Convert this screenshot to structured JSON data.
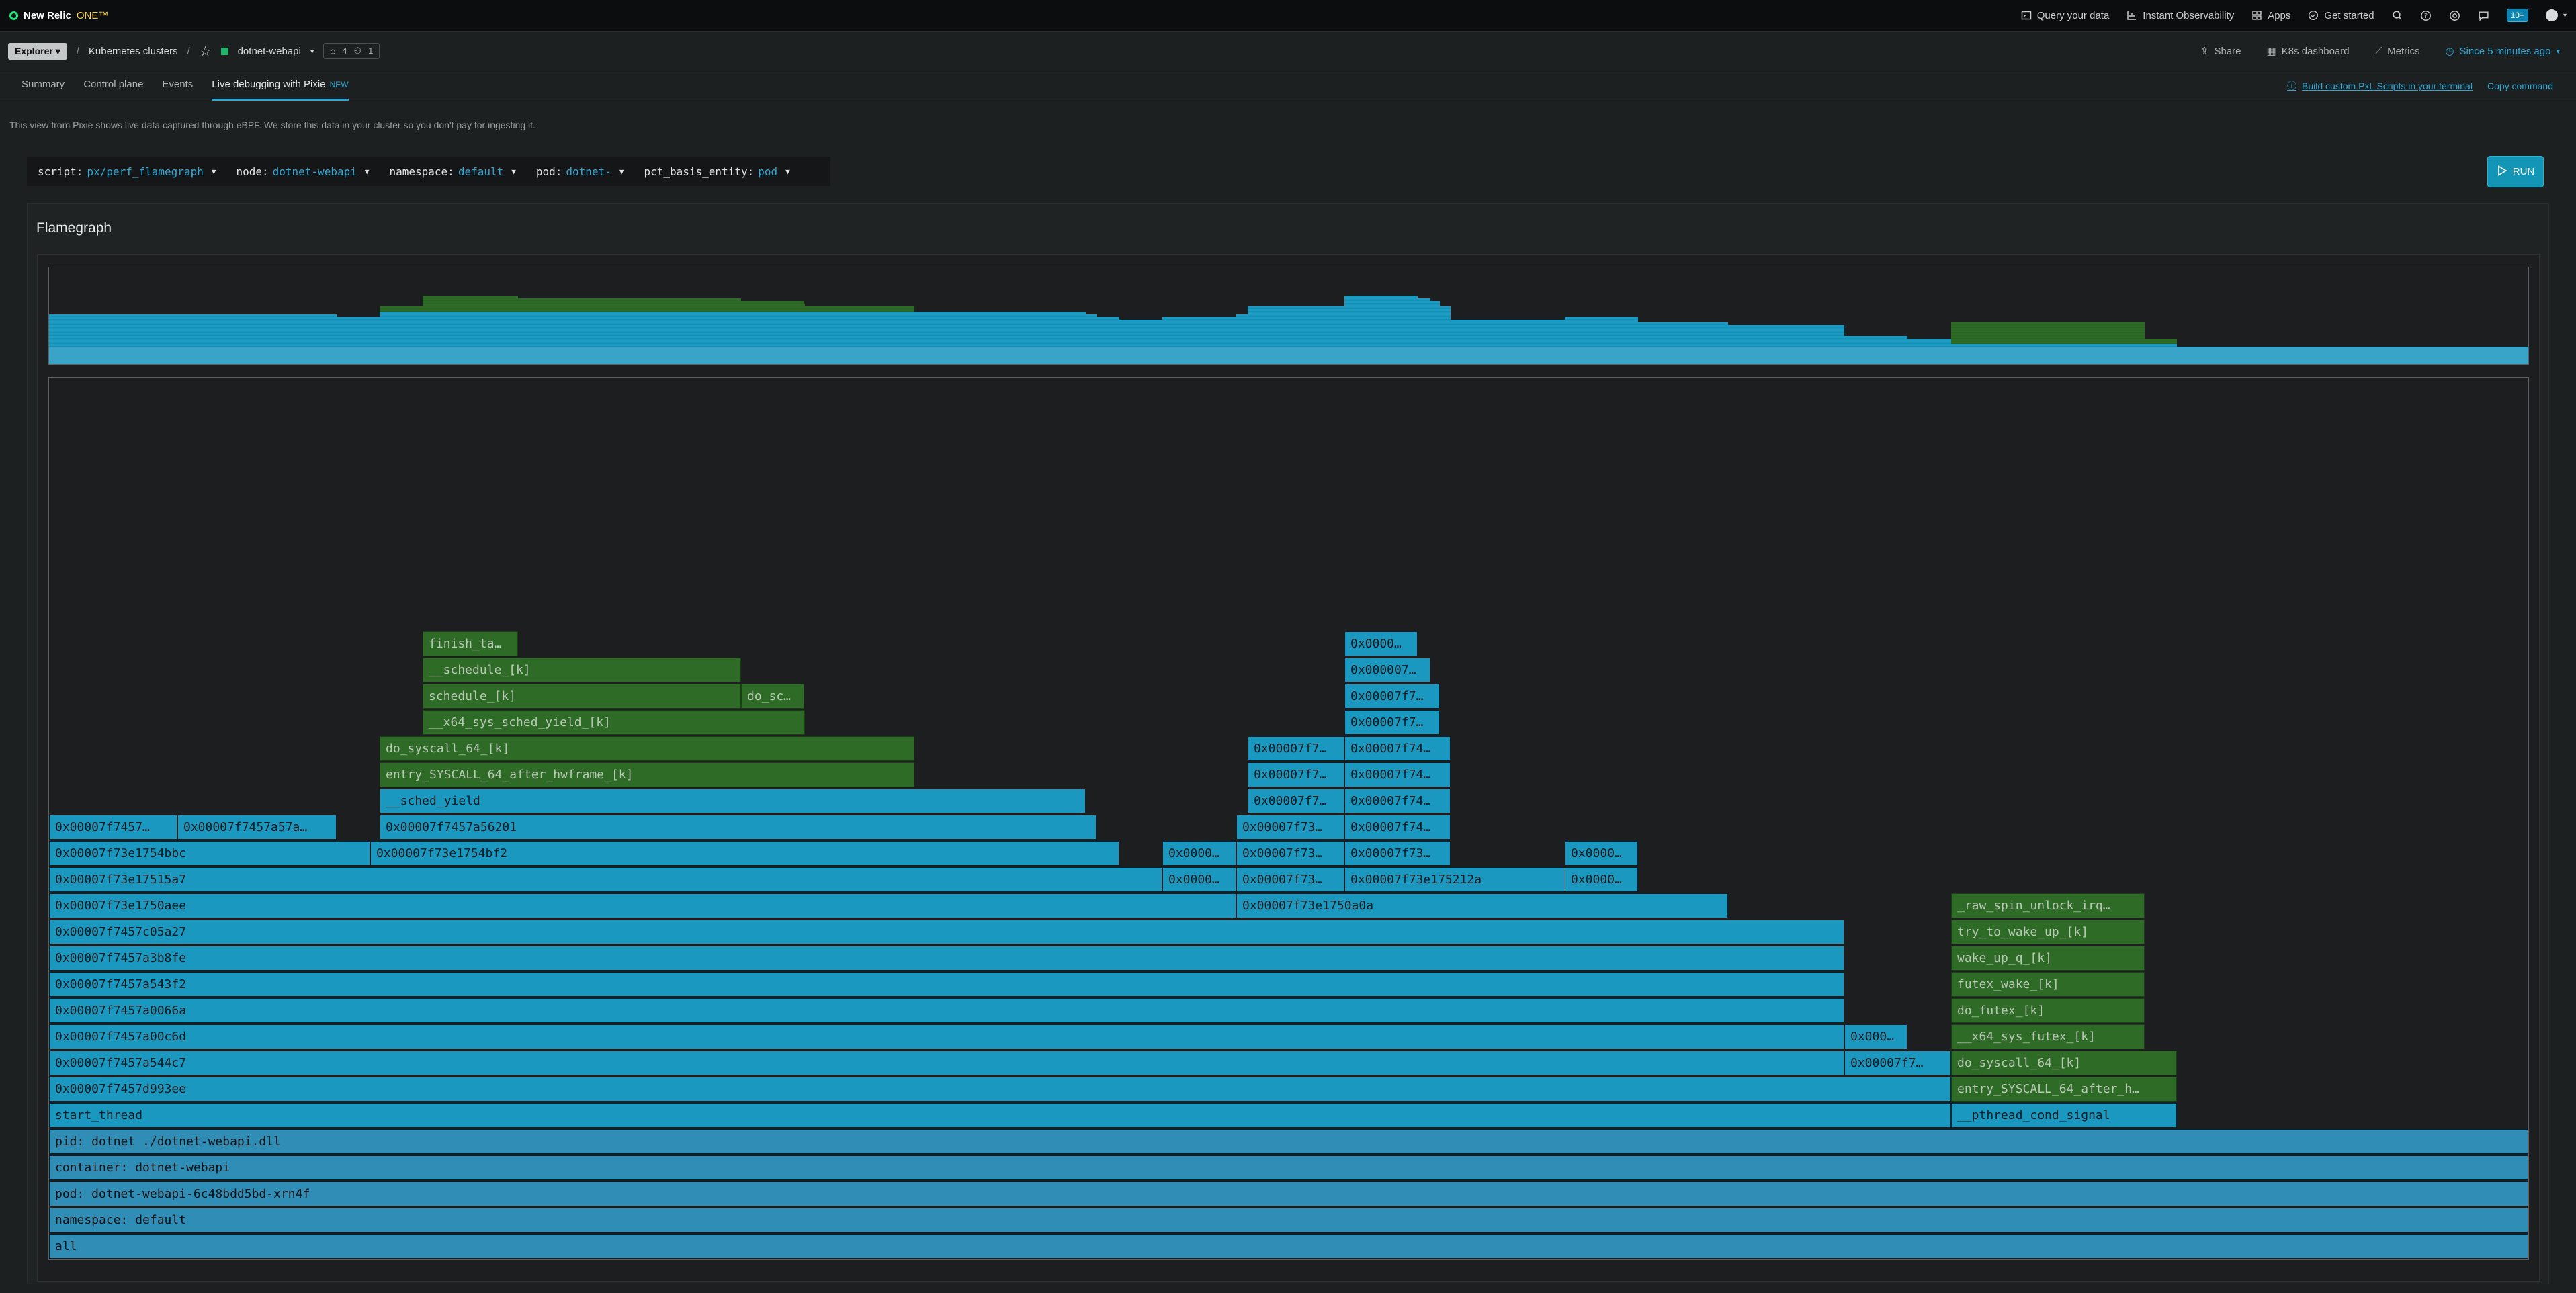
{
  "nav": {
    "brand": "New Relic",
    "brand_one": "ONE™",
    "links": [
      "Query your data",
      "Instant Observability",
      "Apps",
      "Get started"
    ],
    "notif_count": "10+"
  },
  "entity_bar": {
    "explorer": "Explorer",
    "crumb": "Kubernetes clusters",
    "entity": "dotnet-webapi",
    "tags_count": "4",
    "users_count": "1",
    "share": "Share",
    "k8s_dashboard": "K8s dashboard",
    "metrics": "Metrics",
    "time": "Since 5 minutes ago"
  },
  "tabs": {
    "items": [
      "Summary",
      "Control plane",
      "Events"
    ],
    "active": "Live debugging with Pixie",
    "active_tag": "NEW",
    "build_link": "Build custom PxL Scripts in your terminal",
    "copy": "Copy command"
  },
  "info": "This view from Pixie shows live data captured through eBPF. We store this data in your cluster so you don't pay for ingesting it.",
  "controls": [
    {
      "key": "script:",
      "value": "px/perf_flamegraph"
    },
    {
      "key": "node:",
      "value": "dotnet-webapi"
    },
    {
      "key": "namespace:",
      "value": "default"
    },
    {
      "key": "pod:",
      "value": "dotnet-"
    },
    {
      "key": "pct_basis_entity:",
      "value": "pod"
    }
  ],
  "run": "RUN",
  "panel_title": "Flamegraph",
  "colors": {
    "kernel": "#2e6b27",
    "user": "#1a98c0",
    "system": "#2f8db6"
  },
  "flamegraph": {
    "frames": [
      {
        "label": "all",
        "c": "s",
        "l": 0,
        "r": 1,
        "d": 0
      },
      {
        "label": "namespace: default",
        "c": "s",
        "l": 0,
        "r": 1,
        "d": 1
      },
      {
        "label": "pod: dotnet-webapi-6c48bdd5bd-xrn4f",
        "c": "s",
        "l": 0,
        "r": 1,
        "d": 2
      },
      {
        "label": "container: dotnet-webapi",
        "c": "s",
        "l": 0,
        "r": 1,
        "d": 3
      },
      {
        "label": "pid: dotnet ./dotnet-webapi.dll",
        "c": "s",
        "l": 0,
        "r": 1,
        "d": 4
      },
      {
        "label": "start_thread",
        "c": "b",
        "l": 0,
        "r": 0.7673,
        "d": 5
      },
      {
        "label": "__pthread_cond_signal",
        "c": "b",
        "l": 0.7673,
        "r": 0.8584,
        "d": 5
      },
      {
        "label": "0x00007f7457d993ee",
        "c": "b",
        "l": 0,
        "r": 0.7673,
        "d": 6
      },
      {
        "label": "entry_SYSCALL_64_after_h…",
        "c": "g",
        "l": 0.7673,
        "r": 0.8584,
        "d": 6
      },
      {
        "label": "0x00007f7457a544c7",
        "c": "b",
        "l": 0,
        "r": 0.7242,
        "d": 7
      },
      {
        "label": "0x00007f7…",
        "c": "b",
        "l": 0.7242,
        "r": 0.7673,
        "d": 7
      },
      {
        "label": "do_syscall_64_[k]",
        "c": "g",
        "l": 0.7673,
        "r": 0.8584,
        "d": 7
      },
      {
        "label": "0x00007f7457a00c6d",
        "c": "b",
        "l": 0,
        "r": 0.7242,
        "d": 8
      },
      {
        "label": "0x000…",
        "c": "b",
        "l": 0.7242,
        "r": 0.7498,
        "d": 8
      },
      {
        "label": "__x64_sys_futex_[k]",
        "c": "g",
        "l": 0.7673,
        "r": 0.8453,
        "d": 8
      },
      {
        "label": "0x00007f7457a0066a",
        "c": "b",
        "l": 0,
        "r": 0.7242,
        "d": 9
      },
      {
        "label": "do_futex_[k]",
        "c": "g",
        "l": 0.7673,
        "r": 0.8453,
        "d": 9
      },
      {
        "label": "0x00007f7457a543f2",
        "c": "b",
        "l": 0,
        "r": 0.7242,
        "d": 10
      },
      {
        "label": "futex_wake_[k]",
        "c": "g",
        "l": 0.7673,
        "r": 0.8453,
        "d": 10
      },
      {
        "label": "0x00007f7457a3b8fe",
        "c": "b",
        "l": 0,
        "r": 0.7242,
        "d": 11
      },
      {
        "label": "wake_up_q_[k]",
        "c": "g",
        "l": 0.7673,
        "r": 0.8453,
        "d": 11
      },
      {
        "label": "0x00007f7457c05a27",
        "c": "b",
        "l": 0,
        "r": 0.7242,
        "d": 12
      },
      {
        "label": "try_to_wake_up_[k]",
        "c": "g",
        "l": 0.7673,
        "r": 0.8453,
        "d": 12
      },
      {
        "label": "0x00007f73e1750aee",
        "c": "b",
        "l": 0,
        "r": 0.4789,
        "d": 13
      },
      {
        "label": "0x00007f73e1750a0a",
        "c": "b",
        "l": 0.4789,
        "r": 0.6774,
        "d": 13
      },
      {
        "label": "_raw_spin_unlock_irq…",
        "c": "g",
        "l": 0.7673,
        "r": 0.8453,
        "d": 13
      },
      {
        "label": "0x00007f73e17515a7",
        "c": "b",
        "l": 0,
        "r": 0.4491,
        "d": 14
      },
      {
        "label": "0x0000…",
        "c": "b",
        "l": 0.4491,
        "r": 0.4789,
        "d": 14
      },
      {
        "label": "0x00007f73…",
        "c": "b",
        "l": 0.4789,
        "r": 0.5224,
        "d": 14
      },
      {
        "label": "0x00007f73e175212a",
        "c": "b",
        "l": 0.5224,
        "r": 0.6115,
        "d": 14
      },
      {
        "label": "0x0000…",
        "c": "b",
        "l": 0.6115,
        "r": 0.641,
        "d": 14
      },
      {
        "label": "0x00007f73e1754bbc",
        "c": "b",
        "l": 0,
        "r": 0.1295,
        "d": 15
      },
      {
        "label": "0x00007f73e1754bf2",
        "c": "b",
        "l": 0.1295,
        "r": 0.4317,
        "d": 15
      },
      {
        "label": "0x0000…",
        "c": "b",
        "l": 0.4491,
        "r": 0.4789,
        "d": 15
      },
      {
        "label": "0x00007f73…",
        "c": "b",
        "l": 0.4789,
        "r": 0.5224,
        "d": 15
      },
      {
        "label": "0x00007f73…",
        "c": "b",
        "l": 0.5224,
        "r": 0.5652,
        "d": 15
      },
      {
        "label": "0x0000…",
        "c": "b",
        "l": 0.6115,
        "r": 0.641,
        "d": 15
      },
      {
        "label": "0x00007f7457…",
        "c": "b",
        "l": 0,
        "r": 0.0517,
        "d": 16
      },
      {
        "label": "0x00007f7457a57a…",
        "c": "b",
        "l": 0.0517,
        "r": 0.1158,
        "d": 16
      },
      {
        "label": "0x00007f7457a56201",
        "c": "b",
        "l": 0.1333,
        "r": 0.4225,
        "d": 16
      },
      {
        "label": "0x00007f73…",
        "c": "b",
        "l": 0.4789,
        "r": 0.5224,
        "d": 16
      },
      {
        "label": "0x00007f74…",
        "c": "b",
        "l": 0.5224,
        "r": 0.5652,
        "d": 16
      },
      {
        "label": "__sched_yield",
        "c": "b",
        "l": 0.1333,
        "r": 0.418,
        "d": 17
      },
      {
        "label": "0x00007f7…",
        "c": "b",
        "l": 0.4834,
        "r": 0.5224,
        "d": 17
      },
      {
        "label": "0x00007f74…",
        "c": "b",
        "l": 0.5224,
        "r": 0.5652,
        "d": 17
      },
      {
        "label": "entry_SYSCALL_64_after_hwframe_[k]",
        "c": "g",
        "l": 0.1333,
        "r": 0.3489,
        "d": 18
      },
      {
        "label": "0x00007f7…",
        "c": "b",
        "l": 0.4834,
        "r": 0.5224,
        "d": 18
      },
      {
        "label": "0x00007f74…",
        "c": "b",
        "l": 0.5224,
        "r": 0.5652,
        "d": 18
      },
      {
        "label": "do_syscall_64_[k]",
        "c": "g",
        "l": 0.1333,
        "r": 0.3489,
        "d": 19
      },
      {
        "label": "0x00007f7…",
        "c": "b",
        "l": 0.4834,
        "r": 0.5224,
        "d": 19
      },
      {
        "label": "0x00007f74…",
        "c": "b",
        "l": 0.5224,
        "r": 0.5652,
        "d": 19
      },
      {
        "label": "__x64_sys_sched_yield_[k]",
        "c": "g",
        "l": 0.1507,
        "r": 0.3048,
        "d": 20
      },
      {
        "label": "0x00007f7…",
        "c": "b",
        "l": 0.5224,
        "r": 0.561,
        "d": 20
      },
      {
        "label": "schedule_[k]",
        "c": "g",
        "l": 0.1507,
        "r": 0.2792,
        "d": 21
      },
      {
        "label": "do_sc…",
        "c": "g",
        "l": 0.2792,
        "r": 0.3048,
        "d": 21
      },
      {
        "label": "0x00007f7…",
        "c": "b",
        "l": 0.5224,
        "r": 0.561,
        "d": 21
      },
      {
        "label": "__schedule_[k]",
        "c": "g",
        "l": 0.1507,
        "r": 0.2792,
        "d": 22
      },
      {
        "label": "0x000007…",
        "c": "b",
        "l": 0.5224,
        "r": 0.5572,
        "d": 22
      },
      {
        "label": "finish_ta…",
        "c": "g",
        "l": 0.1507,
        "r": 0.1893,
        "d": 23
      },
      {
        "label": "0x0000…",
        "c": "b",
        "l": 0.5224,
        "r": 0.552,
        "d": 23
      }
    ]
  }
}
